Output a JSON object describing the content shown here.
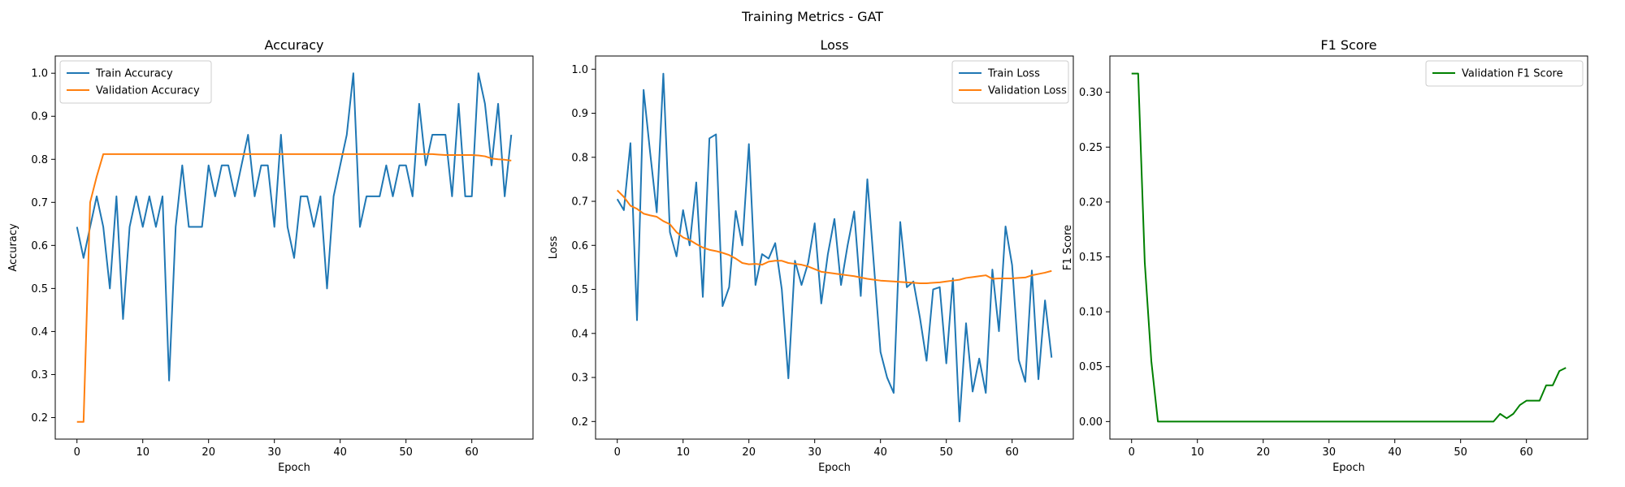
{
  "figure": {
    "suptitle": "Training Metrics - GAT"
  },
  "chart_data": [
    {
      "type": "line",
      "title": "Accuracy",
      "xlabel": "Epoch",
      "ylabel": "Accuracy",
      "xlim": [
        -3.3,
        69.3
      ],
      "ylim": [
        0.15,
        1.04
      ],
      "xticks": [
        0,
        10,
        20,
        30,
        40,
        50,
        60
      ],
      "yticks": [
        0.2,
        0.3,
        0.4,
        0.5,
        0.6,
        0.7,
        0.8,
        0.9,
        1.0
      ],
      "ytick_labels": [
        "0.2",
        "0.3",
        "0.4",
        "0.5",
        "0.6",
        "0.7",
        "0.8",
        "0.9",
        "1.0"
      ],
      "legend": "upper-left",
      "series": [
        {
          "name": "Train Accuracy",
          "color": "#1f77b4",
          "values": [
            0.643,
            0.571,
            0.643,
            0.714,
            0.643,
            0.5,
            0.714,
            0.429,
            0.643,
            0.714,
            0.643,
            0.714,
            0.643,
            0.714,
            0.286,
            0.643,
            0.786,
            0.643,
            0.643,
            0.643,
            0.786,
            0.714,
            0.786,
            0.786,
            0.714,
            0.786,
            0.857,
            0.714,
            0.786,
            0.786,
            0.643,
            0.857,
            0.643,
            0.571,
            0.714,
            0.714,
            0.643,
            0.714,
            0.5,
            0.714,
            0.786,
            0.857,
            1.0,
            0.643,
            0.714,
            0.714,
            0.714,
            0.786,
            0.714,
            0.786,
            0.786,
            0.714,
            0.929,
            0.786,
            0.857,
            0.857,
            0.857,
            0.714,
            0.929,
            0.714,
            0.714,
            1.0,
            0.929,
            0.786,
            0.929,
            0.714,
            0.857
          ]
        },
        {
          "name": "Validation Accuracy",
          "color": "#ff7f0e",
          "values": [
            0.19,
            0.19,
            0.7,
            0.76,
            0.812,
            0.812,
            0.812,
            0.812,
            0.812,
            0.812,
            0.812,
            0.812,
            0.812,
            0.812,
            0.812,
            0.812,
            0.812,
            0.812,
            0.812,
            0.812,
            0.812,
            0.812,
            0.812,
            0.812,
            0.812,
            0.812,
            0.812,
            0.812,
            0.812,
            0.812,
            0.812,
            0.812,
            0.812,
            0.812,
            0.812,
            0.812,
            0.812,
            0.812,
            0.812,
            0.812,
            0.812,
            0.812,
            0.812,
            0.812,
            0.812,
            0.812,
            0.812,
            0.812,
            0.812,
            0.812,
            0.812,
            0.812,
            0.812,
            0.812,
            0.812,
            0.811,
            0.81,
            0.81,
            0.81,
            0.81,
            0.81,
            0.809,
            0.807,
            0.802,
            0.8,
            0.799,
            0.797
          ]
        }
      ]
    },
    {
      "type": "line",
      "title": "Loss",
      "xlabel": "Epoch",
      "ylabel": "Loss",
      "xlim": [
        -3.3,
        69.3
      ],
      "ylim": [
        0.16,
        1.03
      ],
      "xticks": [
        0,
        10,
        20,
        30,
        40,
        50,
        60
      ],
      "yticks": [
        0.2,
        0.3,
        0.4,
        0.5,
        0.6,
        0.7,
        0.8,
        0.9,
        1.0
      ],
      "ytick_labels": [
        "0.2",
        "0.3",
        "0.4",
        "0.5",
        "0.6",
        "0.7",
        "0.8",
        "0.9",
        "1.0"
      ],
      "legend": "upper-right",
      "series": [
        {
          "name": "Train Loss",
          "color": "#1f77b4",
          "values": [
            0.705,
            0.68,
            0.832,
            0.43,
            0.953,
            0.81,
            0.675,
            0.99,
            0.63,
            0.575,
            0.68,
            0.6,
            0.743,
            0.483,
            0.843,
            0.852,
            0.462,
            0.505,
            0.678,
            0.6,
            0.83,
            0.51,
            0.58,
            0.57,
            0.605,
            0.5,
            0.298,
            0.565,
            0.51,
            0.56,
            0.65,
            0.468,
            0.58,
            0.66,
            0.51,
            0.6,
            0.677,
            0.485,
            0.75,
            0.555,
            0.358,
            0.3,
            0.265,
            0.653,
            0.505,
            0.518,
            0.435,
            0.338,
            0.5,
            0.505,
            0.332,
            0.525,
            0.2,
            0.423,
            0.268,
            0.343,
            0.265,
            0.545,
            0.405,
            0.643,
            0.555,
            0.34,
            0.29,
            0.543,
            0.296,
            0.475,
            0.345
          ]
        },
        {
          "name": "Validation Loss",
          "color": "#ff7f0e",
          "values": [
            0.725,
            0.71,
            0.69,
            0.683,
            0.672,
            0.668,
            0.665,
            0.655,
            0.648,
            0.63,
            0.618,
            0.612,
            0.603,
            0.595,
            0.59,
            0.587,
            0.583,
            0.578,
            0.57,
            0.56,
            0.557,
            0.558,
            0.556,
            0.563,
            0.565,
            0.565,
            0.56,
            0.558,
            0.556,
            0.552,
            0.546,
            0.54,
            0.538,
            0.536,
            0.534,
            0.532,
            0.53,
            0.527,
            0.524,
            0.522,
            0.52,
            0.519,
            0.518,
            0.517,
            0.516,
            0.515,
            0.514,
            0.514,
            0.515,
            0.516,
            0.518,
            0.52,
            0.522,
            0.526,
            0.528,
            0.53,
            0.532,
            0.524,
            0.525,
            0.525,
            0.525,
            0.526,
            0.527,
            0.532,
            0.535,
            0.538,
            0.542
          ]
        }
      ]
    },
    {
      "type": "line",
      "title": "F1 Score",
      "xlabel": "Epoch",
      "ylabel": "F1 Score",
      "xlim": [
        -3.3,
        69.3
      ],
      "ylim": [
        -0.016,
        0.333
      ],
      "xticks": [
        0,
        10,
        20,
        30,
        40,
        50,
        60
      ],
      "yticks": [
        0.0,
        0.05,
        0.1,
        0.15,
        0.2,
        0.25,
        0.3
      ],
      "ytick_labels": [
        "0.00",
        "0.05",
        "0.10",
        "0.15",
        "0.20",
        "0.25",
        "0.30"
      ],
      "legend": "upper-right",
      "series": [
        {
          "name": "Validation F1 Score",
          "color": "#008000",
          "values": [
            0.317,
            0.317,
            0.145,
            0.055,
            0.0,
            0.0,
            0.0,
            0.0,
            0.0,
            0.0,
            0.0,
            0.0,
            0.0,
            0.0,
            0.0,
            0.0,
            0.0,
            0.0,
            0.0,
            0.0,
            0.0,
            0.0,
            0.0,
            0.0,
            0.0,
            0.0,
            0.0,
            0.0,
            0.0,
            0.0,
            0.0,
            0.0,
            0.0,
            0.0,
            0.0,
            0.0,
            0.0,
            0.0,
            0.0,
            0.0,
            0.0,
            0.0,
            0.0,
            0.0,
            0.0,
            0.0,
            0.0,
            0.0,
            0.0,
            0.0,
            0.0,
            0.0,
            0.0,
            0.0,
            0.0,
            0.0,
            0.007,
            0.003,
            0.007,
            0.015,
            0.019,
            0.019,
            0.019,
            0.033,
            0.033,
            0.046,
            0.049
          ]
        }
      ]
    }
  ]
}
